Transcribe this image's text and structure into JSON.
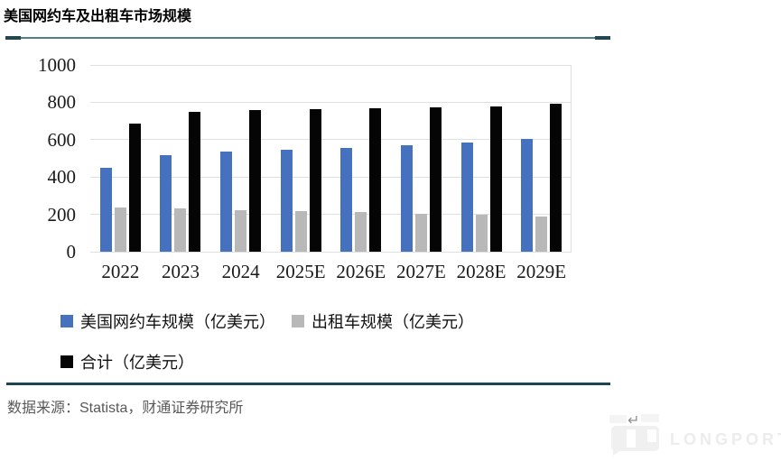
{
  "title": "美国网约车及出租车市场规模",
  "source_note": "数据来源：Statista，财通证券研究所",
  "watermark": {
    "brand": "LONGPORT",
    "return_symbol": "↵"
  },
  "colors": {
    "rule_teal": "#537f8d",
    "rule_dark": "#234751",
    "gridline": "#dcdfe4",
    "axis_text": "#1a1a1a",
    "source_text": "#595959"
  },
  "chart_data": {
    "type": "bar",
    "title": "美国网约车及出租车市场规模",
    "categories": [
      "2022",
      "2023",
      "2024",
      "2025E",
      "2026E",
      "2027E",
      "2028E",
      "2029E"
    ],
    "series": [
      {
        "name": "美国网约车规模（亿美元）",
        "color": "#4571be",
        "values": [
          450,
          515,
          537,
          544,
          556,
          569,
          584,
          602
        ]
      },
      {
        "name": "出租车规模（亿美元）",
        "color": "#b8b8b8",
        "values": [
          237,
          233,
          223,
          218,
          212,
          204,
          196,
          189
        ]
      },
      {
        "name": "合计（亿美元）",
        "color": "#050505",
        "values": [
          687,
          748,
          760,
          762,
          768,
          773,
          780,
          791
        ]
      }
    ],
    "ylim": [
      0,
      1000
    ],
    "yticks": [
      0,
      200,
      400,
      600,
      800,
      1000
    ],
    "grid": true,
    "legend_position": "bottom"
  }
}
